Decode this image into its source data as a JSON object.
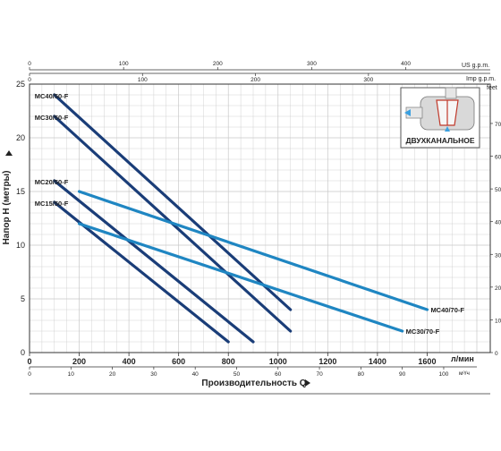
{
  "chart_data": {
    "type": "line",
    "title": "",
    "ylabel": "Напор H (метры)",
    "xlabel": "Производительность Q",
    "x_unit_primary": "л/мин",
    "x_unit_m3h": "м³/ч",
    "y_unit_feet": "feet",
    "top_unit_us": "US g.p.m.",
    "top_unit_imp": "Imp g.p.m.",
    "xlim": [
      0,
      1800
    ],
    "ylim": [
      0,
      25
    ],
    "grid": true,
    "x_ticks": [
      "0",
      "200",
      "400",
      "600",
      "800",
      "1000",
      "1200",
      "1400",
      "1600"
    ],
    "y_ticks": [
      "0",
      "5",
      "10",
      "15",
      "20",
      "25"
    ],
    "m3h_ticks": [
      "0",
      "10",
      "20",
      "30",
      "40",
      "50",
      "60",
      "70",
      "80",
      "90",
      "100"
    ],
    "feet_ticks": [
      "0",
      "10",
      "20",
      "30",
      "40",
      "50",
      "60",
      "70"
    ],
    "us_gpm_ticks": [
      "0",
      "100",
      "200",
      "300",
      "400"
    ],
    "imp_gpm_ticks": [
      "0",
      "100",
      "200",
      "300"
    ],
    "inset_label": "ДВУХКАНАЛЬНОЕ",
    "colors": {
      "dark": "#1a3d78",
      "light": "#1f86c2",
      "grid": "#c8c8c8",
      "axis": "#333333"
    },
    "series": [
      {
        "name": "MC40/50-F",
        "color": "#1a3d78",
        "label_pos": "start",
        "x": [
          100,
          1050
        ],
        "y": [
          24,
          4
        ]
      },
      {
        "name": "MC30/50-F",
        "color": "#1a3d78",
        "label_pos": "start",
        "x": [
          100,
          1050
        ],
        "y": [
          22,
          2
        ]
      },
      {
        "name": "MC20/50-F",
        "color": "#1a3d78",
        "label_pos": "start",
        "x": [
          100,
          900
        ],
        "y": [
          16,
          1
        ]
      },
      {
        "name": "MC15/50-F",
        "color": "#1a3d78",
        "label_pos": "start",
        "x": [
          100,
          800
        ],
        "y": [
          14,
          1
        ]
      },
      {
        "name": "MC40/70-F",
        "color": "#1f86c2",
        "label_pos": "end",
        "x": [
          200,
          1600
        ],
        "y": [
          15,
          4
        ]
      },
      {
        "name": "MC30/70-F",
        "color": "#1f86c2",
        "label_pos": "end",
        "x": [
          200,
          1500
        ],
        "y": [
          12,
          2
        ]
      }
    ]
  }
}
